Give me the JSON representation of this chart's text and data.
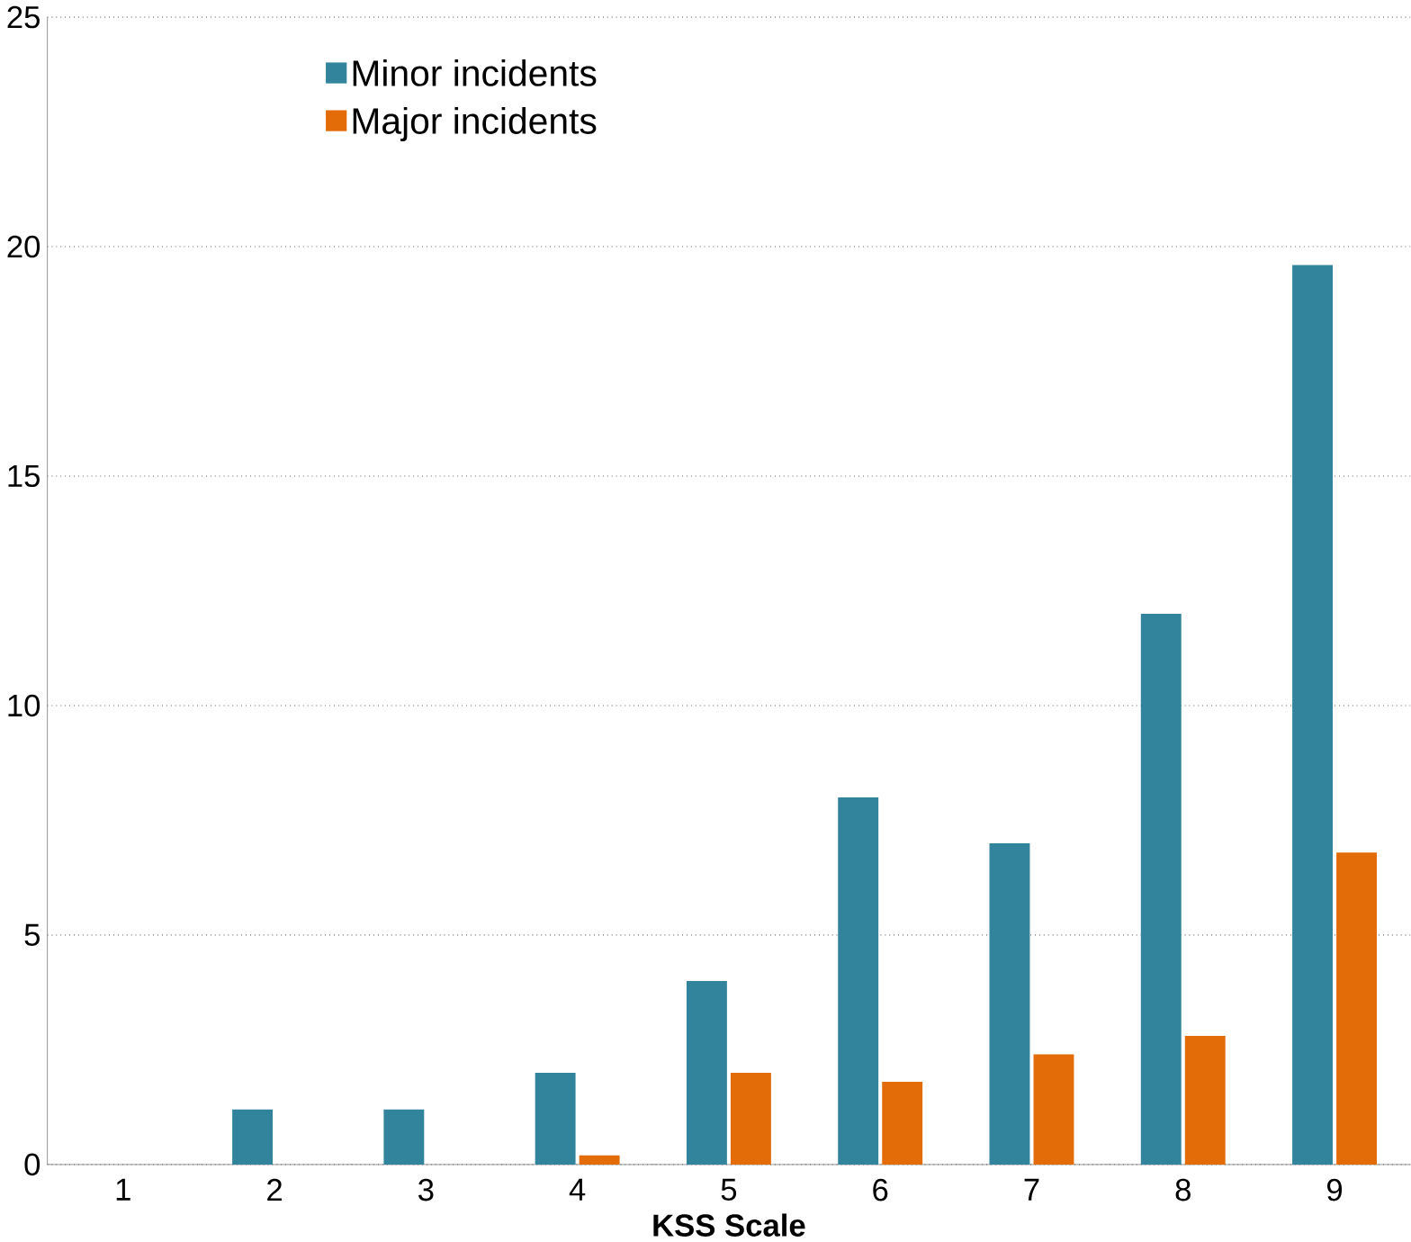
{
  "chart_data": {
    "type": "bar",
    "xlabel": "KSS Scale",
    "categories": [
      "1",
      "2",
      "3",
      "4",
      "5",
      "6",
      "7",
      "8",
      "9"
    ],
    "series": [
      {
        "name": "Minor incidents",
        "color": "#31849b",
        "values": [
          0,
          1.2,
          1.2,
          2,
          4,
          8,
          7,
          12,
          19.6
        ]
      },
      {
        "name": "Major incidents",
        "color": "#e36c09",
        "values": [
          0,
          0,
          0,
          0.2,
          2,
          1.8,
          2.4,
          2.8,
          6.8
        ]
      }
    ],
    "ylim": [
      0,
      25
    ],
    "yticks": [
      0,
      5,
      10,
      15,
      20,
      25
    ],
    "grid": "y",
    "legend": "top left"
  }
}
